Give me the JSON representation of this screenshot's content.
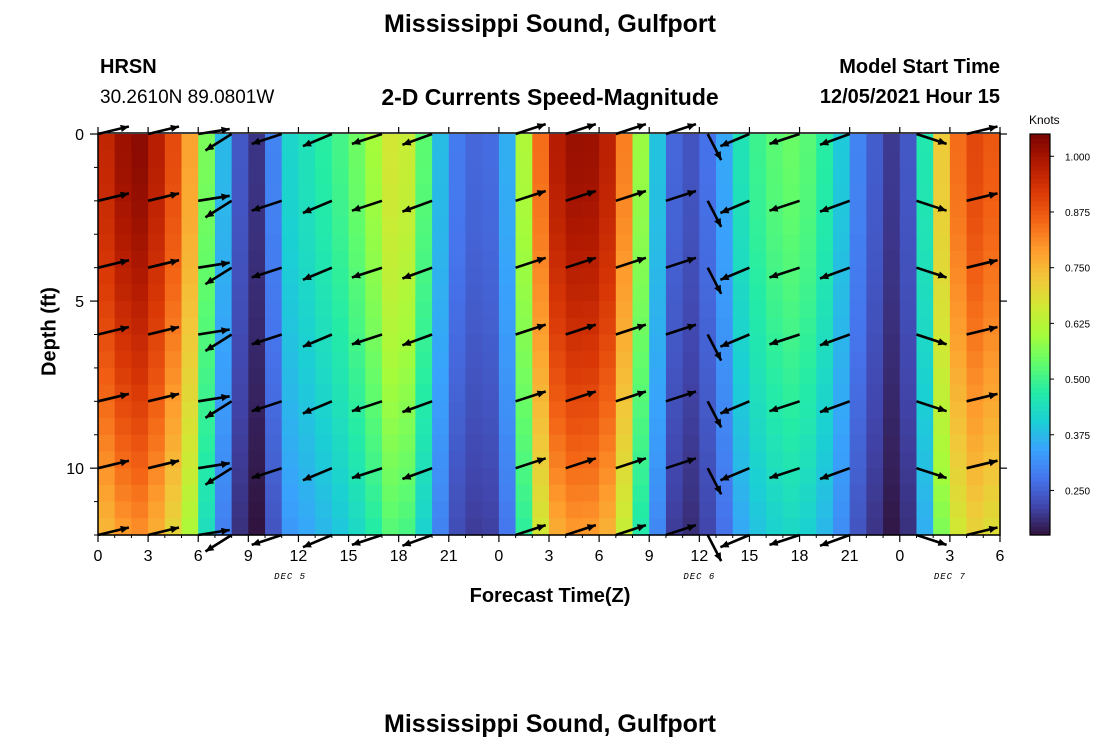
{
  "header": {
    "title": "Mississippi Sound, Gulfport",
    "station_id": "HRSN",
    "station_coords": "30.2610N  89.0801W",
    "plot_title": "2-D Currents Speed-Magnitude",
    "model_start_label": "Model Start Time",
    "model_start_value": "12/05/2021 Hour 15"
  },
  "footer": {
    "next_title": "Mississippi Sound, Gulfport"
  },
  "chart_data": {
    "type": "heatmap",
    "subtype": "time-depth current speed section with direction arrows",
    "xlabel": "Forecast Time(Z)",
    "ylabel": "Depth (ft)",
    "x_unit": "hours",
    "x_range_hours": [
      0,
      54
    ],
    "x_tick_hours": [
      0,
      3,
      6,
      9,
      12,
      15,
      18,
      21,
      24,
      27,
      30,
      33,
      36,
      39,
      42,
      45,
      48,
      51,
      54
    ],
    "x_tick_labels": [
      "0",
      "3",
      "6",
      "9",
      "12",
      "15",
      "18",
      "21",
      "0",
      "3",
      "6",
      "9",
      "12",
      "15",
      "18",
      "21",
      "0",
      "3",
      "6"
    ],
    "date_labels": [
      {
        "text": "DEC 5",
        "hour": 11.5
      },
      {
        "text": "DEC 6",
        "hour": 36
      },
      {
        "text": "DEC 7",
        "hour": 51
      }
    ],
    "y_range_ft": [
      0,
      12
    ],
    "y_inverted": true,
    "y_tick_values": [
      0,
      5,
      10
    ],
    "y_tick_labels": [
      "0",
      "5",
      "10"
    ],
    "colorbar": {
      "title": "Knots",
      "range": [
        0.15,
        1.05
      ],
      "tick_values": [
        0.25,
        0.375,
        0.5,
        0.625,
        0.75,
        0.875,
        1.0
      ],
      "tick_labels": [
        "0.250",
        "0.375",
        "0.500",
        "0.625",
        "0.750",
        "0.875",
        "1.000"
      ],
      "colors": [
        "#30123b",
        "#4145ab",
        "#4675ed",
        "#39a2fc",
        "#1bcfd4",
        "#24eca6",
        "#61fc6c",
        "#a4fc3b",
        "#d1e834",
        "#f3c63a",
        "#fe9b2d",
        "#f36315",
        "#d93806",
        "#b11901",
        "#7a0402"
      ]
    },
    "speed_profile_knots": [
      {
        "hour": 0,
        "speed": 0.92
      },
      {
        "hour": 1,
        "speed": 1.0
      },
      {
        "hour": 2.5,
        "speed": 1.03
      },
      {
        "hour": 4,
        "speed": 0.95
      },
      {
        "hour": 5.5,
        "speed": 0.78
      },
      {
        "hour": 6.5,
        "speed": 0.56
      },
      {
        "hour": 7.2,
        "speed": 0.42
      },
      {
        "hour": 8,
        "speed": 0.3
      },
      {
        "hour": 9,
        "speed": 0.18
      },
      {
        "hour": 9.8,
        "speed": 0.2
      },
      {
        "hour": 10.5,
        "speed": 0.3
      },
      {
        "hour": 11.5,
        "speed": 0.42
      },
      {
        "hour": 13,
        "speed": 0.46
      },
      {
        "hour": 15,
        "speed": 0.52
      },
      {
        "hour": 16.5,
        "speed": 0.6
      },
      {
        "hour": 18,
        "speed": 0.7
      },
      {
        "hour": 19,
        "speed": 0.6
      },
      {
        "hour": 20,
        "speed": 0.46
      },
      {
        "hour": 21,
        "speed": 0.3
      },
      {
        "hour": 22.5,
        "speed": 0.26
      },
      {
        "hour": 24,
        "speed": 0.27
      },
      {
        "hour": 25,
        "speed": 0.45
      },
      {
        "hour": 26,
        "speed": 0.78
      },
      {
        "hour": 27.5,
        "speed": 0.98
      },
      {
        "hour": 29,
        "speed": 1.03
      },
      {
        "hour": 31,
        "speed": 0.95
      },
      {
        "hour": 32,
        "speed": 0.7
      },
      {
        "hour": 33,
        "speed": 0.48
      },
      {
        "hour": 34,
        "speed": 0.3
      },
      {
        "hour": 35,
        "speed": 0.22
      },
      {
        "hour": 36,
        "speed": 0.25
      },
      {
        "hour": 37,
        "speed": 0.3
      },
      {
        "hour": 38.5,
        "speed": 0.45
      },
      {
        "hour": 40,
        "speed": 0.52
      },
      {
        "hour": 42,
        "speed": 0.55
      },
      {
        "hour": 44,
        "speed": 0.45
      },
      {
        "hour": 45.5,
        "speed": 0.3
      },
      {
        "hour": 47,
        "speed": 0.22
      },
      {
        "hour": 48,
        "speed": 0.18
      },
      {
        "hour": 49,
        "speed": 0.3
      },
      {
        "hour": 50,
        "speed": 0.62
      },
      {
        "hour": 51,
        "speed": 0.82
      },
      {
        "hour": 52.5,
        "speed": 0.9
      },
      {
        "hour": 54,
        "speed": 0.86
      }
    ],
    "arrow_depths_ft": [
      0,
      2,
      4,
      6,
      8,
      10,
      12
    ],
    "arrows": [
      {
        "hour": 0,
        "dir": 75
      },
      {
        "hour": 3,
        "dir": 75
      },
      {
        "hour": 6,
        "dir": 80
      },
      {
        "hour": 8,
        "dir": 235
      },
      {
        "hour": 11,
        "dir": 250
      },
      {
        "hour": 14,
        "dir": 245
      },
      {
        "hour": 17,
        "dir": 250
      },
      {
        "hour": 20,
        "dir": 248
      },
      {
        "hour": 25,
        "dir": 70
      },
      {
        "hour": 28,
        "dir": 70
      },
      {
        "hour": 31,
        "dir": 70
      },
      {
        "hour": 34,
        "dir": 70
      },
      {
        "hour": 36.5,
        "dir": 155
      },
      {
        "hour": 39,
        "dir": 245
      },
      {
        "hour": 42,
        "dir": 250
      },
      {
        "hour": 45,
        "dir": 248
      },
      {
        "hour": 49,
        "dir": 110
      },
      {
        "hour": 52,
        "dir": 75
      }
    ]
  }
}
